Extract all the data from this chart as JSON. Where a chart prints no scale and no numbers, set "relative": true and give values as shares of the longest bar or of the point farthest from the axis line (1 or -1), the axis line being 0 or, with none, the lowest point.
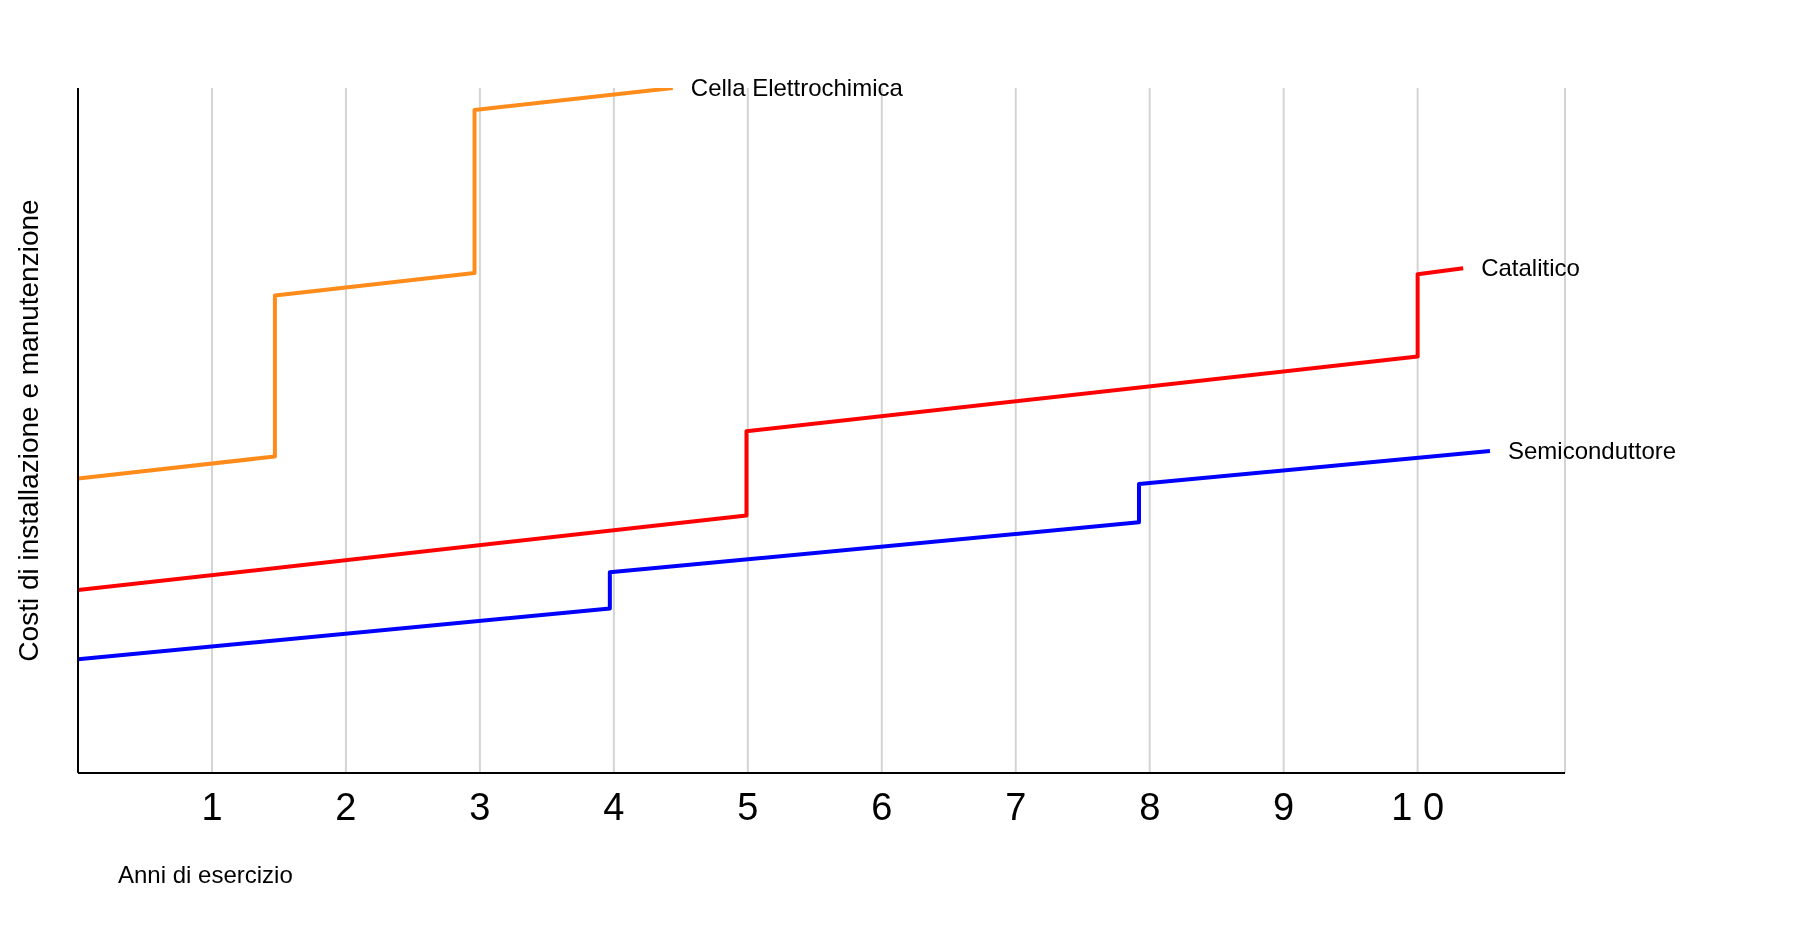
{
  "chart_data": {
    "type": "line",
    "relative": true,
    "xlabel": "Anni di esercizio",
    "ylabel": "Costi di installazione e manutenzione",
    "xlim": [
      0,
      11.1
    ],
    "xticks": [
      1,
      2,
      3,
      4,
      5,
      6,
      7,
      8,
      9,
      {
        "value": 10,
        "label": "1 0"
      }
    ],
    "grid": "x",
    "marker": "none",
    "line_style": "solid",
    "series": [
      {
        "name": "Cella Elettrochimica",
        "color": "#ff8c1a",
        "x": [
          0,
          1.47,
          1.47,
          2.96,
          2.96,
          4.44
        ],
        "values": [
          0.43,
          0.462,
          0.697,
          0.73,
          0.968,
          1
        ]
      },
      {
        "name": "Catalitico",
        "color": "#ff0000",
        "x": [
          0,
          4.99,
          4.99,
          10,
          10,
          10.34
        ],
        "values": [
          0.267,
          0.376,
          0.499,
          0.608,
          0.728,
          0.737
        ]
      },
      {
        "name": "Semiconduttore",
        "color": "#0000ff",
        "x": [
          0,
          3.97,
          3.97,
          7.92,
          7.92,
          10.54
        ],
        "values": [
          0.166,
          0.24,
          0.293,
          0.366,
          0.422,
          0.47
        ]
      }
    ]
  }
}
